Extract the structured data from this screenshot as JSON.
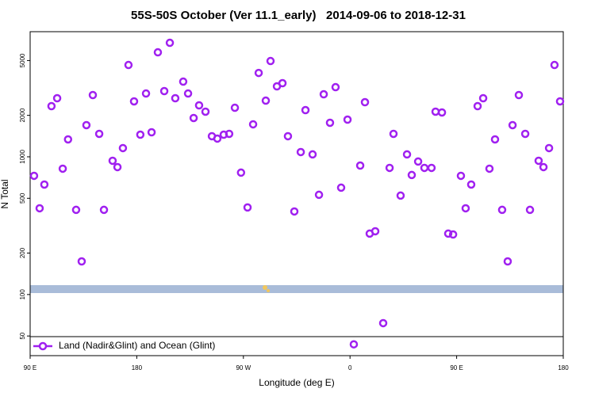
{
  "chart_data": {
    "type": "scatter",
    "title": "55S-50S October (Ver 11.1_early)   2014-09-06 to 2018-12-31",
    "x_label": "Longitude (deg E)",
    "y_label": "N Total",
    "log_y": true,
    "legend_position": "lower left",
    "xlim": [
      90,
      540
    ],
    "xticks": [
      {
        "value": 90,
        "label": "90 E"
      },
      {
        "value": 180,
        "label": "180"
      },
      {
        "value": 270,
        "label": "90 W"
      },
      {
        "value": 360,
        "label": "0"
      },
      {
        "value": 450,
        "label": "90 E"
      },
      {
        "value": 540,
        "label": "180"
      }
    ],
    "ylim": [
      36,
      8100
    ],
    "yticks": [
      50,
      100,
      200,
      500,
      1000,
      2000,
      5000
    ],
    "series": [
      {
        "name": "Land (Nadir&Glint) and Ocean (Glint)",
        "color": "#a020f0",
        "x": [
          93.3,
          98,
          102,
          108,
          112.8,
          117.5,
          122,
          128.8,
          133.5,
          137.5,
          142.9,
          148.3,
          152.3,
          159.6,
          163.7,
          168.3,
          173,
          177.7,
          183,
          187.8,
          192.5,
          197.8,
          203.2,
          207.9,
          212.5,
          219.2,
          223.3,
          228,
          232.6,
          238,
          243.4,
          248,
          253.4,
          258,
          262.8,
          268,
          273.5,
          278.2,
          282.9,
          288.9,
          292.9,
          298.3,
          303,
          307.6,
          313,
          318.4,
          322.4,
          328.4,
          333.8,
          337.8,
          343.1,
          347.8,
          352.5,
          357.9,
          363.2,
          368.6,
          372.6,
          376.6,
          381.3,
          388,
          393.4,
          396.7,
          402.7,
          408.1,
          412.1,
          417.5,
          422.8,
          428.8,
          432.2,
          437.6,
          442.9,
          447,
          453.6,
          457.6,
          462.3,
          467.7,
          472.4,
          477.7,
          482.4,
          488.4,
          493.1,
          497.2,
          502.5,
          507.9,
          511.9,
          519.2,
          523.3,
          528,
          532.6,
          537.3
        ],
        "values": [
          728,
          423,
          629,
          2333,
          2663,
          820,
          1338,
          412,
          174,
          1698,
          2808,
          1468,
          412,
          936,
          842,
          1157,
          4642,
          2526,
          1448,
          2882,
          1507,
          5737,
          3000,
          6725,
          2663,
          3515,
          2882,
          1913,
          2364,
          2127,
          1411,
          1356,
          1448,
          1468,
          2271,
          768,
          429,
          1721,
          4065,
          2558,
          4959,
          3248,
          3424,
          1411,
          401,
          1083,
          2183,
          1041,
          530,
          2845,
          1767,
          3204,
          597,
          1862,
          43.5,
          864,
          2492,
          277,
          288,
          62,
          831,
          1468,
          523,
          1041,
          738,
          924,
          831,
          831,
          2127,
          2099,
          277,
          273,
          728,
          423,
          629,
          2333,
          2663,
          820,
          1338,
          412,
          174,
          1698,
          2808,
          1468,
          412,
          936,
          842,
          1157,
          4642,
          2526
        ]
      }
    ]
  }
}
